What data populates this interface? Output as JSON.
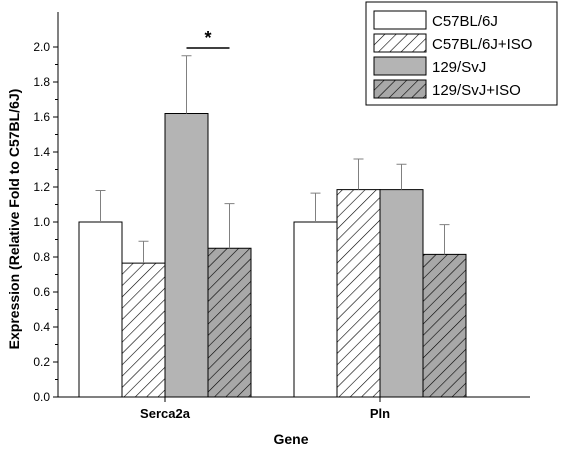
{
  "chart_data": {
    "type": "bar",
    "xlabel": "Gene",
    "ylabel": "Expression (Relative Fold to C57BL/6J)",
    "ylim": [
      0,
      2.0
    ],
    "yticks": [
      "0.0",
      "0.2",
      "0.4",
      "0.6",
      "0.8",
      "1.0",
      "1.2",
      "1.4",
      "1.6",
      "1.8",
      "2.0"
    ],
    "categories": [
      "Serca2a",
      "Pln"
    ],
    "legend_position": "top-right",
    "grid": false,
    "series": [
      {
        "name": "C57BL/6J",
        "values": [
          1.0,
          1.0
        ],
        "errors": [
          0.18,
          0.165
        ],
        "fill": "white",
        "color": "#ffffff"
      },
      {
        "name": "C57BL/6J+ISO",
        "values": [
          0.765,
          1.185
        ],
        "errors": [
          0.125,
          0.175
        ],
        "fill": "hatch-white",
        "color": "#ffffff"
      },
      {
        "name": "129/SvJ",
        "values": [
          1.62,
          1.185
        ],
        "errors": [
          0.33,
          0.145
        ],
        "fill": "gray",
        "color": "#b4b4b4"
      },
      {
        "name": "129/SvJ+ISO",
        "values": [
          0.85,
          0.815
        ],
        "errors": [
          0.255,
          0.17
        ],
        "fill": "hatch-gray",
        "color": "#a0a0a0"
      }
    ],
    "annotations": [
      {
        "text": "*",
        "category": "Serca2a",
        "between_series": [
          2,
          3
        ]
      }
    ]
  }
}
